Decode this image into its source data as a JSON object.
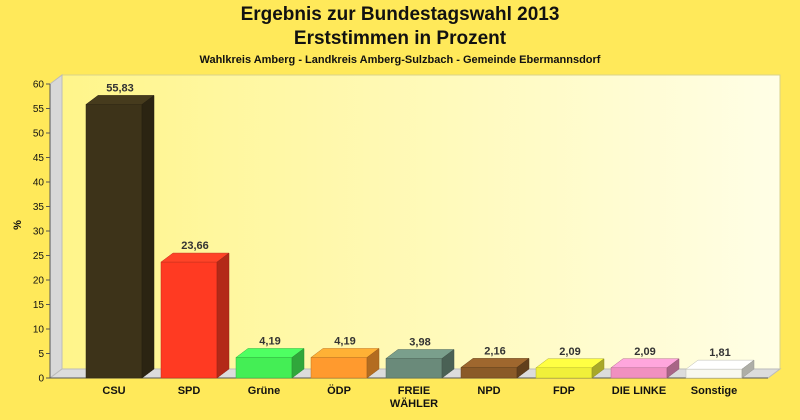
{
  "chart_data": {
    "type": "bar",
    "title": "Ergebnis zur Bundestagswahl 2013",
    "title_line2": "Erststimmen in Prozent",
    "subtitle": "Wahlkreis Amberg - Landkreis Amberg-Sulzbach - Gemeinde Ebermannsdorf",
    "ylabel": "%",
    "ylim": [
      0,
      60
    ],
    "yticks": [
      0,
      5,
      10,
      15,
      20,
      25,
      30,
      35,
      40,
      45,
      50,
      55,
      60
    ],
    "grid": false,
    "categories": [
      "CSU",
      "SPD",
      "Grüne",
      "ÖDP",
      "FREIE WÄHLER",
      "NPD",
      "FDP",
      "DIE LINKE",
      "Sonstige"
    ],
    "values": [
      55.83,
      23.66,
      4.19,
      4.19,
      3.98,
      2.16,
      2.09,
      2.09,
      1.81
    ],
    "value_labels": [
      "55,83",
      "23,66",
      "4,19",
      "4,19",
      "3,98",
      "2,16",
      "2,09",
      "2,09",
      "1,81"
    ],
    "colors": [
      "#3d3319",
      "#ff3a22",
      "#44ee55",
      "#ff9a2e",
      "#6a8a7a",
      "#8a5a28",
      "#f0f03a",
      "#f090c0",
      "#f8f8ee"
    ]
  }
}
